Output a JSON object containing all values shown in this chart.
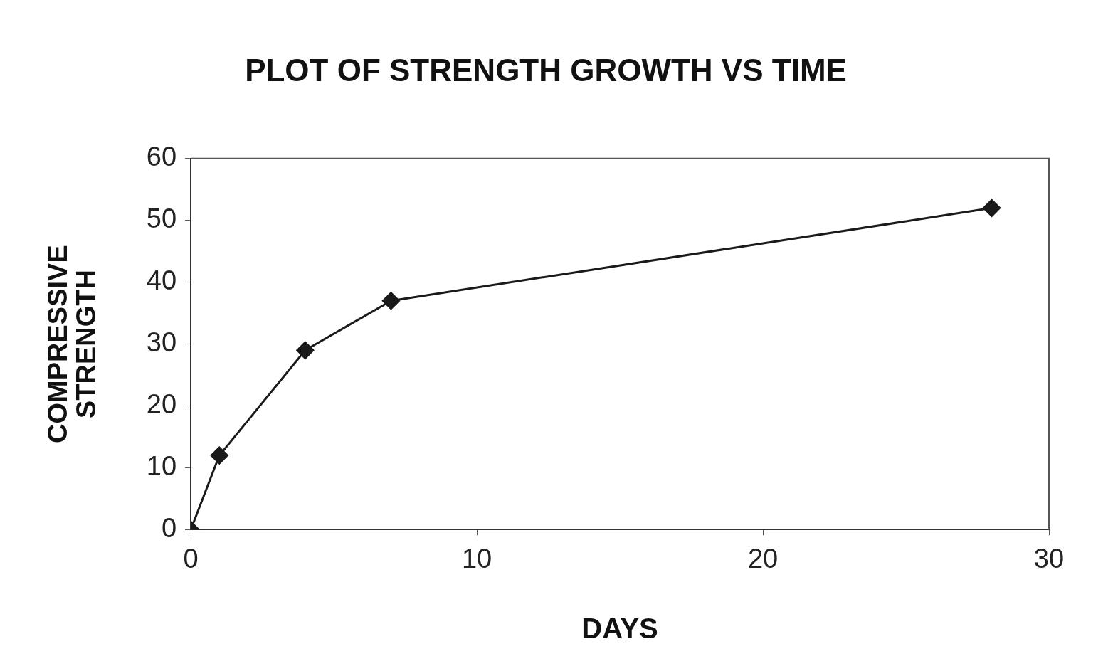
{
  "chart_data": {
    "type": "line",
    "title": "PLOT OF STRENGTH GROWTH VS TIME",
    "xlabel": "DAYS",
    "ylabel": "COMPRESSIVE\nSTRENGTH",
    "x": [
      0,
      1,
      4,
      7,
      28
    ],
    "series": [
      {
        "color": "#1a1a1a",
        "values": [
          0,
          12,
          29,
          37,
          52
        ]
      }
    ],
    "xlim": [
      0,
      30
    ],
    "xticks": [
      0,
      10,
      20,
      30
    ],
    "ylim": [
      0,
      60
    ],
    "yticks": [
      0,
      10,
      20,
      30,
      40,
      50,
      60
    ],
    "grid": false,
    "legend": false,
    "marker": "diamond",
    "line_style": "solid"
  }
}
